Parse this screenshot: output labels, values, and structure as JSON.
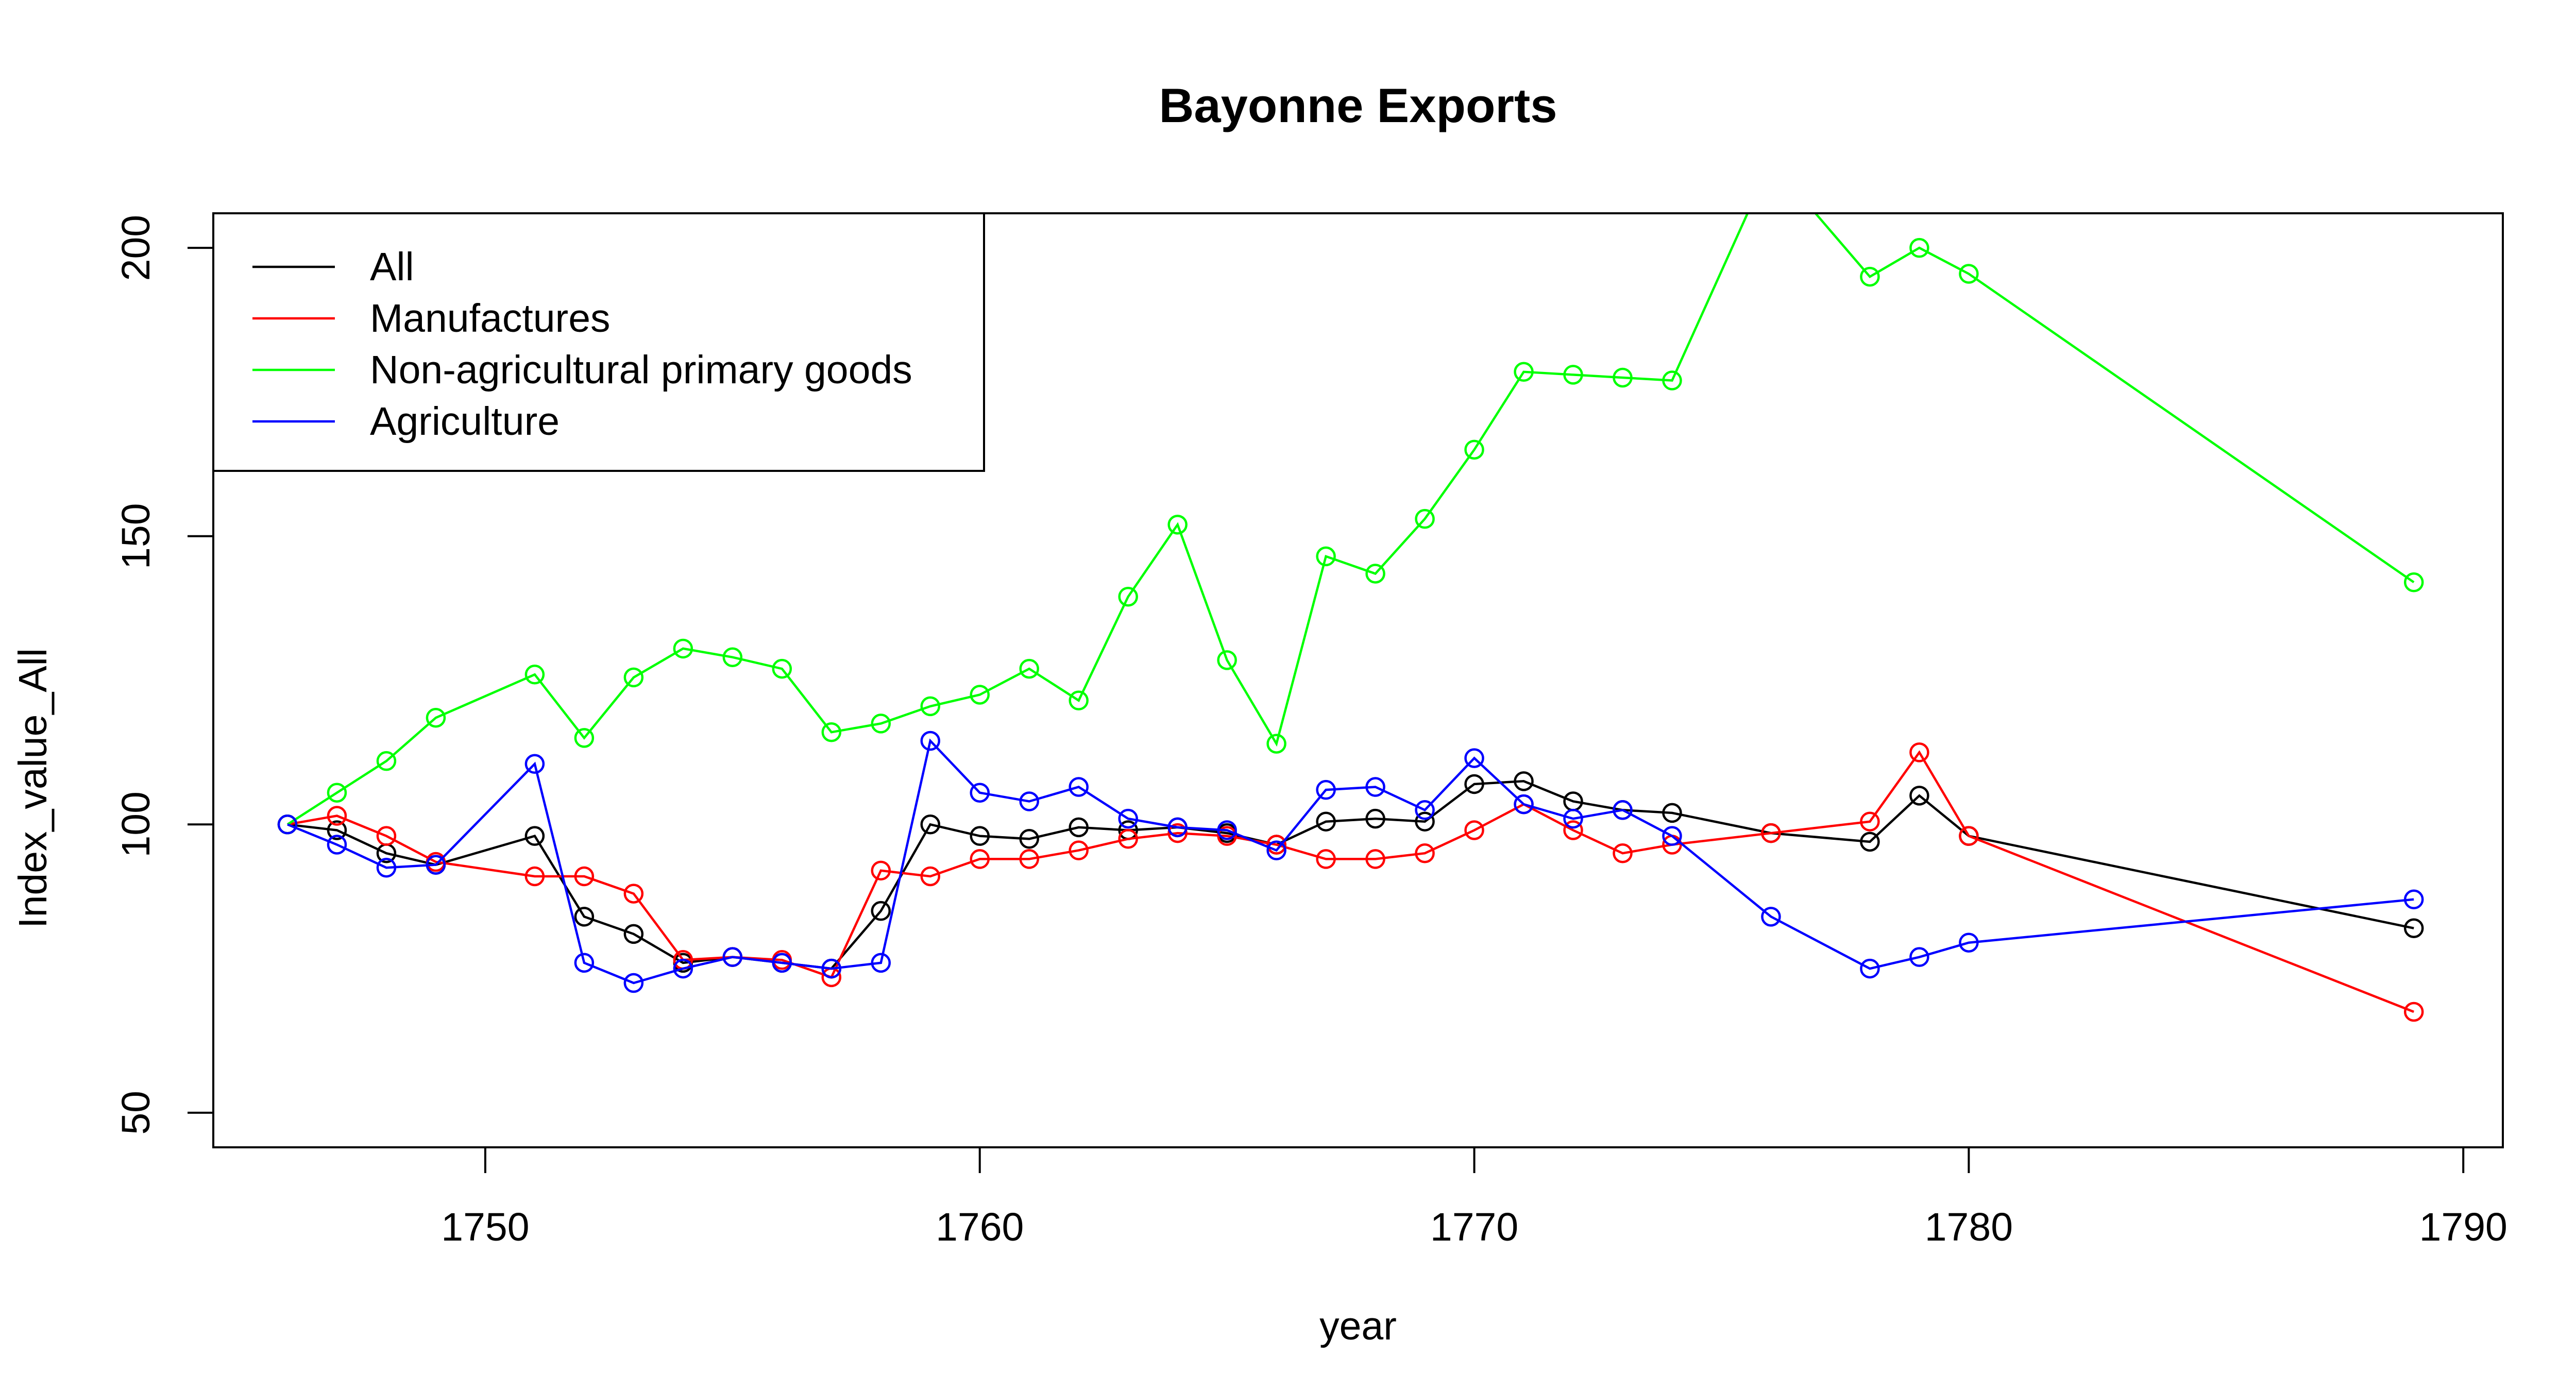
{
  "chart_data": {
    "type": "line",
    "title": "Bayonne Exports",
    "xlabel": "year",
    "ylabel": "Index_value_All",
    "xlim": [
      1744.5,
      1790.8
    ],
    "ylim": [
      44,
      206
    ],
    "xticks": [
      1750,
      1760,
      1770,
      1780,
      1790
    ],
    "yticks": [
      50,
      100,
      150,
      200
    ],
    "grid": false,
    "legend_position": "top-left",
    "series": [
      {
        "name": "All",
        "color": "#000000",
        "x": [
          1746,
          1747,
          1748,
          1749,
          1751,
          1752,
          1753,
          1754,
          1755,
          1756,
          1757,
          1758,
          1759,
          1760,
          1761,
          1762,
          1763,
          1764,
          1765,
          1766,
          1767,
          1768,
          1769,
          1770,
          1771,
          1772,
          1773,
          1774,
          1776,
          1778,
          1779,
          1780,
          1789
        ],
        "y": [
          100,
          99,
          95,
          93,
          98,
          84,
          81,
          76,
          77,
          76,
          75,
          85,
          100,
          98,
          97.5,
          99.5,
          99,
          99.5,
          98.5,
          96.5,
          100.5,
          101,
          100.5,
          107,
          107.5,
          104,
          102.5,
          102,
          98.5,
          97,
          105,
          98,
          82
        ]
      },
      {
        "name": "Manufactures",
        "color": "#ff0000",
        "x": [
          1746,
          1747,
          1748,
          1749,
          1751,
          1752,
          1753,
          1754,
          1755,
          1756,
          1757,
          1758,
          1759,
          1760,
          1761,
          1762,
          1763,
          1764,
          1765,
          1766,
          1767,
          1768,
          1769,
          1770,
          1771,
          1772,
          1773,
          1774,
          1776,
          1778,
          1779,
          1780,
          1789
        ],
        "y": [
          100,
          101.5,
          98,
          93.5,
          91,
          91,
          88,
          76.5,
          77,
          76.5,
          73.5,
          92,
          91,
          94,
          94,
          95.5,
          97.5,
          98.5,
          98,
          96.5,
          94,
          94,
          95,
          99,
          103.5,
          99,
          95,
          96.5,
          98.5,
          100.5,
          112.5,
          98,
          67.5
        ]
      },
      {
        "name": "Non-agricultural primary goods",
        "color": "#00ff00",
        "x": [
          1746,
          1747,
          1748,
          1749,
          1751,
          1752,
          1753,
          1754,
          1755,
          1756,
          1757,
          1758,
          1759,
          1760,
          1761,
          1762,
          1763,
          1764,
          1765,
          1766,
          1767,
          1768,
          1769,
          1770,
          1771,
          1772,
          1773,
          1774,
          1776,
          1778,
          1779,
          1780,
          1789
        ],
        "y": [
          100,
          105.5,
          111,
          118.5,
          126,
          115,
          125.5,
          130.5,
          129,
          127,
          116,
          117.5,
          120.5,
          122.5,
          127,
          121.5,
          139.5,
          152,
          128.5,
          114,
          146.5,
          143.5,
          153,
          165,
          178.5,
          178,
          177.5,
          177,
          215,
          195,
          200,
          195.5,
          142
        ]
      },
      {
        "name": "Agriculture",
        "color": "#0000ff",
        "x": [
          1746,
          1747,
          1748,
          1749,
          1751,
          1752,
          1753,
          1754,
          1755,
          1756,
          1757,
          1758,
          1759,
          1760,
          1761,
          1762,
          1763,
          1764,
          1765,
          1766,
          1767,
          1768,
          1769,
          1770,
          1771,
          1772,
          1773,
          1774,
          1776,
          1778,
          1779,
          1780,
          1789
        ],
        "y": [
          100,
          96.5,
          92.5,
          93,
          110.5,
          76,
          72.5,
          75,
          77,
          76,
          75,
          76,
          114.5,
          105.5,
          104,
          106.5,
          101,
          99.5,
          99,
          95.5,
          106,
          106.5,
          102.5,
          111.5,
          103.5,
          101,
          102.5,
          98,
          84,
          75,
          77,
          79.5,
          87
        ]
      }
    ]
  }
}
